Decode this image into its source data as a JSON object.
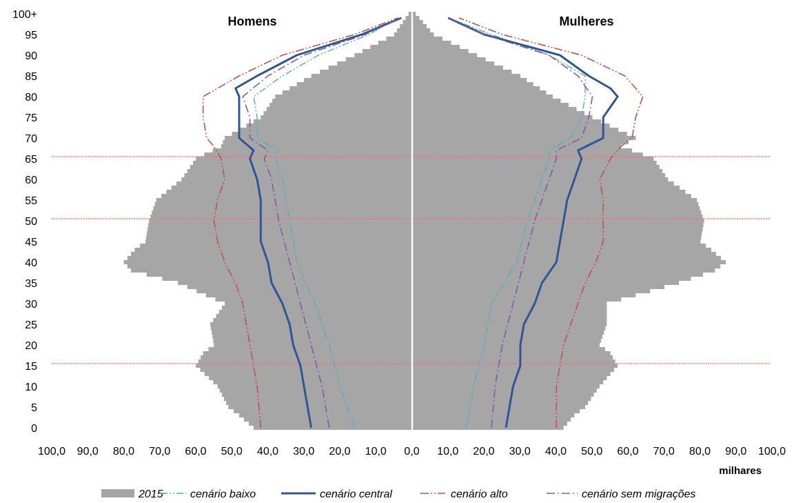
{
  "chart_data": {
    "type": "population-pyramid",
    "titles": {
      "left": "Homens",
      "right": "Mulheres"
    },
    "x_unit_label": "milhares",
    "x_tick_labels": [
      "100,0",
      "90,0",
      "80,0",
      "70,0",
      "60,0",
      "50,0",
      "40,0",
      "30,0",
      "20,0",
      "10,0",
      "0,0",
      "10,0",
      "20,0",
      "30,0",
      "40,0",
      "50,0",
      "60,0",
      "70,0",
      "80,0",
      "90,0",
      "100,0"
    ],
    "y_tick_labels": [
      "0",
      "5",
      "10",
      "15",
      "20",
      "25",
      "30",
      "35",
      "40",
      "45",
      "50",
      "55",
      "60",
      "65",
      "70",
      "75",
      "80",
      "85",
      "90",
      "95",
      "100+"
    ],
    "xlim": [
      0,
      100
    ],
    "ylim": [
      0,
      100
    ],
    "reference_lines_age": [
      15,
      50,
      65
    ],
    "colors": {
      "bars": "#a6a6a6",
      "baixo": "#4bacc6",
      "central": "#2f5597",
      "alto": "#c0504d",
      "sem_migracoes": "#7a5ea3",
      "reference_lines": "#ff6b6b",
      "axis_center": "#ffffff"
    },
    "bars_2015": {
      "name": "2015",
      "anchor_ages": [
        0,
        3,
        5,
        10,
        15,
        18,
        20,
        25,
        30,
        35,
        38,
        40,
        43,
        45,
        50,
        55,
        60,
        65,
        68,
        70,
        75,
        80,
        85,
        90,
        95,
        100
      ],
      "male": [
        44,
        48,
        51,
        54,
        60,
        58,
        55,
        56,
        52,
        65,
        78,
        80,
        77,
        74,
        73,
        71,
        64,
        60,
        53,
        52,
        42,
        38,
        28,
        16,
        5,
        1
      ],
      "female": [
        42,
        45,
        48,
        52,
        57,
        55,
        52,
        54,
        54,
        74,
        84,
        87,
        83,
        80,
        81,
        79,
        71,
        67,
        58,
        62,
        50,
        39,
        30,
        18,
        6,
        1
      ]
    },
    "series": [
      {
        "name": "cenário baixo",
        "key": "baixo",
        "male_ages": [
          0,
          10,
          20,
          30,
          40,
          50,
          60,
          65,
          67,
          70,
          75,
          80,
          85,
          90,
          95,
          99
        ],
        "male": [
          16,
          20,
          23,
          27,
          32,
          34,
          36,
          38,
          37,
          43,
          43,
          44,
          36,
          26,
          12,
          4
        ],
        "female_ages": [
          0,
          10,
          20,
          30,
          40,
          50,
          60,
          65,
          67,
          70,
          75,
          80,
          85,
          90,
          95,
          99
        ],
        "female": [
          15,
          17,
          20,
          22,
          29,
          32,
          36,
          38,
          38,
          44,
          47,
          48,
          48,
          38,
          22,
          10
        ]
      },
      {
        "name": "cenário central",
        "key": "central",
        "male_ages": [
          0,
          5,
          10,
          15,
          20,
          25,
          30,
          35,
          40,
          45,
          50,
          55,
          60,
          65,
          67,
          70,
          75,
          80,
          82,
          85,
          90,
          95,
          99
        ],
        "male": [
          28,
          29,
          30,
          31,
          33,
          34,
          36,
          39,
          40,
          42,
          42,
          42,
          43,
          45,
          44,
          48,
          48,
          48,
          49,
          43,
          32,
          14,
          3
        ],
        "female_ages": [
          0,
          5,
          10,
          15,
          20,
          25,
          30,
          35,
          40,
          45,
          50,
          55,
          60,
          65,
          67,
          70,
          75,
          80,
          82,
          85,
          90,
          95,
          99
        ],
        "female": [
          26,
          27,
          28,
          30,
          30,
          31,
          34,
          36,
          40,
          41,
          42,
          43,
          45,
          47,
          46,
          53,
          53,
          57,
          55,
          49,
          41,
          20,
          10
        ]
      },
      {
        "name": "cenário alto",
        "key": "alto",
        "male_ages": [
          0,
          10,
          20,
          30,
          35,
          40,
          45,
          50,
          55,
          60,
          65,
          68,
          70,
          75,
          80,
          85,
          90,
          95,
          99
        ],
        "male": [
          42,
          43,
          45,
          47,
          49,
          52,
          54,
          55,
          54,
          52,
          53,
          55,
          57,
          58,
          58,
          48,
          36,
          16,
          4
        ],
        "female_ages": [
          0,
          10,
          20,
          30,
          35,
          40,
          45,
          50,
          55,
          60,
          65,
          68,
          70,
          75,
          80,
          85,
          90,
          95,
          99
        ],
        "female": [
          40,
          40,
          42,
          46,
          48,
          51,
          53,
          53,
          53,
          52,
          55,
          58,
          61,
          62,
          64,
          59,
          47,
          25,
          13
        ]
      },
      {
        "name": "cenário sem migrações",
        "key": "sem_migracoes",
        "male_ages": [
          0,
          10,
          20,
          30,
          40,
          50,
          60,
          65,
          67,
          70,
          75,
          80,
          85,
          90,
          95,
          99
        ],
        "male": [
          23,
          25,
          28,
          31,
          34,
          37,
          39,
          41,
          40,
          45,
          45,
          47,
          40,
          30,
          13,
          3
        ],
        "female_ages": [
          0,
          10,
          20,
          30,
          40,
          50,
          60,
          65,
          67,
          70,
          75,
          80,
          85,
          90,
          95,
          99
        ],
        "female": [
          22,
          23,
          25,
          28,
          31,
          34,
          38,
          40,
          40,
          47,
          49,
          50,
          46,
          38,
          20,
          10
        ]
      }
    ],
    "legend": {
      "placement": "bottom",
      "items": [
        "2015",
        "cenário baixo",
        "cenário central",
        "cenário alto",
        "cenário sem migrações"
      ]
    }
  }
}
